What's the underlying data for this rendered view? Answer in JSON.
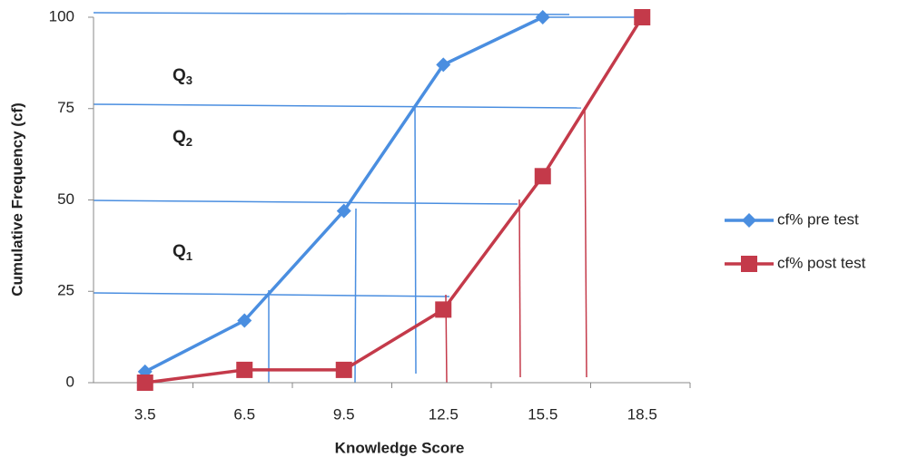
{
  "chart_data": {
    "type": "line",
    "x_label": "Knowledge Score",
    "y_label": "Cumulative Frequency (cf)",
    "categories": [
      "3.5",
      "6.5",
      "9.5",
      "12.5",
      "15.5",
      "18.5"
    ],
    "series": [
      {
        "name": "cf% pre test",
        "color": "#4a8ee0",
        "marker": "diamond",
        "values": [
          3,
          17,
          47,
          87,
          100,
          null
        ]
      },
      {
        "name": "cf% post test",
        "color": "#c43a4a",
        "marker": "square",
        "values": [
          0,
          3.5,
          3.5,
          20,
          56.5,
          100
        ]
      }
    ],
    "ylim": [
      0,
      100
    ],
    "yticks": [
      0,
      25,
      50,
      75,
      100
    ],
    "grid": false,
    "legend": "right",
    "annotations": [
      {
        "text": "Q",
        "subscript": "3"
      },
      {
        "text": "Q",
        "subscript": "2"
      },
      {
        "text": "Q",
        "subscript": "1"
      }
    ]
  }
}
